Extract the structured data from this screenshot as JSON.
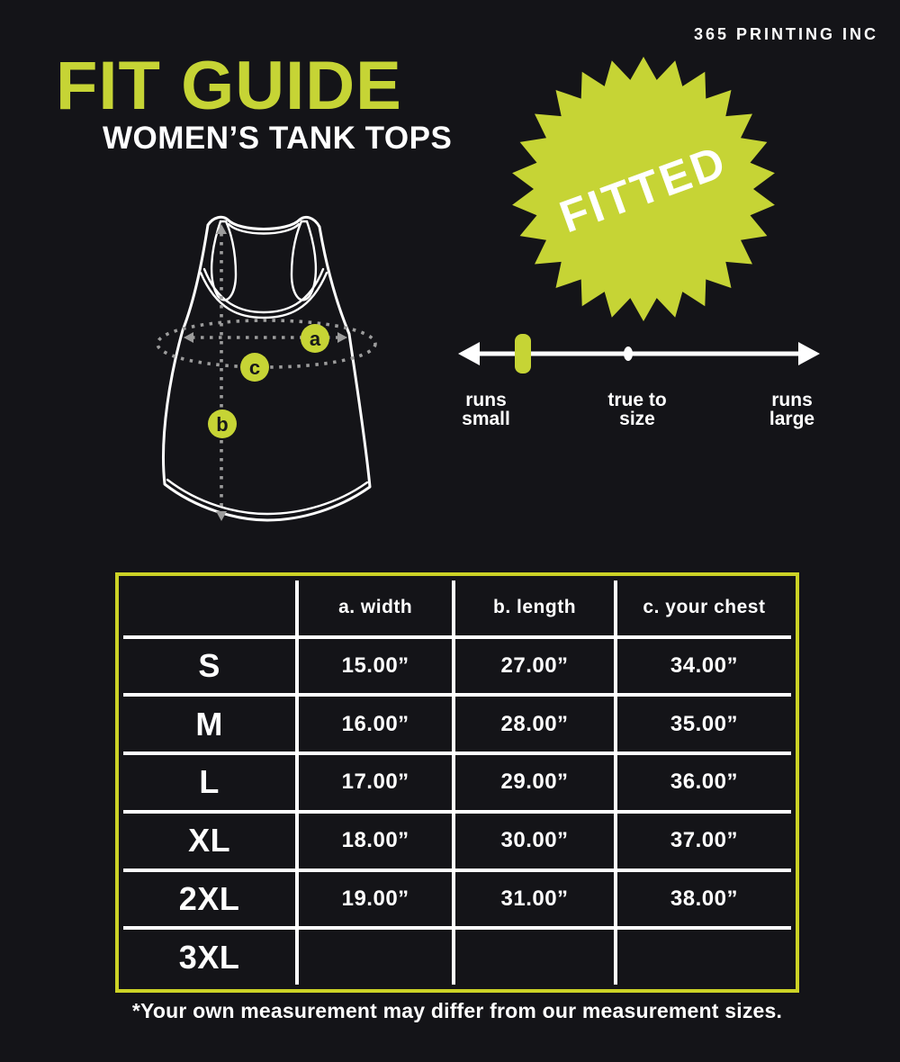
{
  "colors": {
    "background": "#141418",
    "accent": "#c6d435",
    "table_border": "#ccd226"
  },
  "brand": "365 PRINTING INC",
  "header": {
    "title": "FIT GUIDE",
    "subtitle": "WOMEN’S TANK TOPS"
  },
  "badge": {
    "label": "FITTED"
  },
  "diagram": {
    "points": [
      {
        "letter": "a",
        "measures": "width"
      },
      {
        "letter": "b",
        "measures": "length"
      },
      {
        "letter": "c",
        "measures": "your chest"
      }
    ]
  },
  "scale": {
    "left": {
      "line1": "runs",
      "line2": "small"
    },
    "center": {
      "line1": "true to",
      "line2": "size"
    },
    "right": {
      "line1": "runs",
      "line2": "large"
    },
    "indicator_position": "runs small"
  },
  "table": {
    "headers": {
      "size": "",
      "width": "a. width",
      "length": "b. length",
      "chest": "c. your chest"
    },
    "rows": [
      {
        "size": "S",
        "width": "15.00”",
        "length": "27.00”",
        "chest": "34.00”"
      },
      {
        "size": "M",
        "width": "16.00”",
        "length": "28.00”",
        "chest": "35.00”"
      },
      {
        "size": "L",
        "width": "17.00”",
        "length": "29.00”",
        "chest": "36.00”"
      },
      {
        "size": "XL",
        "width": "18.00”",
        "length": "30.00”",
        "chest": "37.00”"
      },
      {
        "size": "2XL",
        "width": "19.00”",
        "length": "31.00”",
        "chest": "38.00”"
      },
      {
        "size": "3XL",
        "width": "",
        "length": "",
        "chest": ""
      }
    ]
  },
  "footnote": "*Your own measurement may differ from our measurement sizes."
}
